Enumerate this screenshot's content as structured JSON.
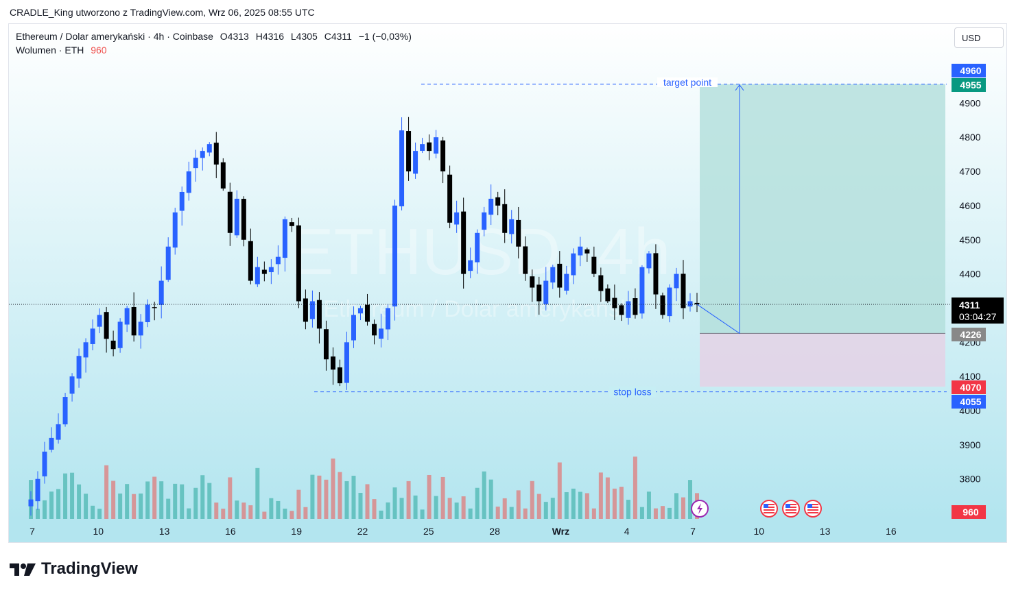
{
  "caption": "CRADLE_King utworzono z TradingView.com, Wrz 06, 2025 08:55 UTC",
  "legend": {
    "symbol": "Ethereum / Dolar amerykański · 4h · Coinbase",
    "open": "O4313",
    "high": "H4316",
    "low": "L4305",
    "close": "C4311",
    "change": "−1 (−0,03%)",
    "volume_label": "Wolumen · ETH",
    "volume_value": "960"
  },
  "currency": "USD",
  "watermark": {
    "line1": "ETHUSD, 4h",
    "line2": "Ethereum / Dolar amerykański"
  },
  "annotations": {
    "target": "target point",
    "stop": "stop loss"
  },
  "price_labels": {
    "target_top": "4960",
    "target": "4955",
    "current": "4311",
    "countdown": "03:04:27",
    "entry": "4226",
    "stop_top": "4070",
    "stop": "4055",
    "volume": "960"
  },
  "footer": "TradingView",
  "colors": {
    "up": "#2962ff",
    "down": "#000000",
    "vol_up": "#26a69a",
    "vol_down": "#ef5350",
    "target_zone": "#b2dfdb",
    "stop_zone": "#e1d5e7",
    "accent": "#2962ff"
  },
  "chart_data": {
    "type": "candlestick",
    "timeframe": "4h",
    "y_axis": {
      "ticks": [
        3800,
        3900,
        4000,
        4100,
        4200,
        4400,
        4500,
        4600,
        4700,
        4800,
        4900
      ],
      "range": [
        3700,
        5000
      ]
    },
    "x_axis": {
      "ticks": [
        "7",
        "10",
        "13",
        "16",
        "19",
        "22",
        "25",
        "28",
        "Wrz",
        "4",
        "7",
        "10",
        "13",
        "16"
      ]
    },
    "key_levels": {
      "target": 4955,
      "entry": 4226,
      "stop_zone_top": 4070,
      "stop": 4055,
      "current": 4311
    },
    "close_path": [
      3740,
      3800,
      3880,
      3920,
      3960,
      4040,
      4100,
      4160,
      4200,
      4240,
      4280,
      4210,
      4180,
      4260,
      4300,
      4220,
      4260,
      4310,
      4300,
      4380,
      4480,
      4580,
      4640,
      4700,
      4740,
      4760,
      4780,
      4720,
      4650,
      4520,
      4620,
      4500,
      4380,
      4420,
      4400,
      4420,
      4450,
      4560,
      4540,
      4320,
      4260,
      4320,
      4240,
      4150,
      4120,
      4080,
      4200,
      4280,
      4300,
      4260,
      4220,
      4240,
      4300,
      4600,
      4820,
      4700,
      4760,
      4780,
      4760,
      4800,
      4700,
      4550,
      4580,
      4400,
      4440,
      4520,
      4580,
      4620,
      4600,
      4520,
      4560,
      4480,
      4400,
      4360,
      4320,
      4380,
      4420,
      4360,
      4400,
      4460,
      4480,
      4460,
      4400,
      4350,
      4320,
      4300,
      4280,
      4320,
      4280,
      4420,
      4460,
      4340,
      4280,
      4360,
      4400,
      4300,
      4320,
      4311
    ]
  }
}
